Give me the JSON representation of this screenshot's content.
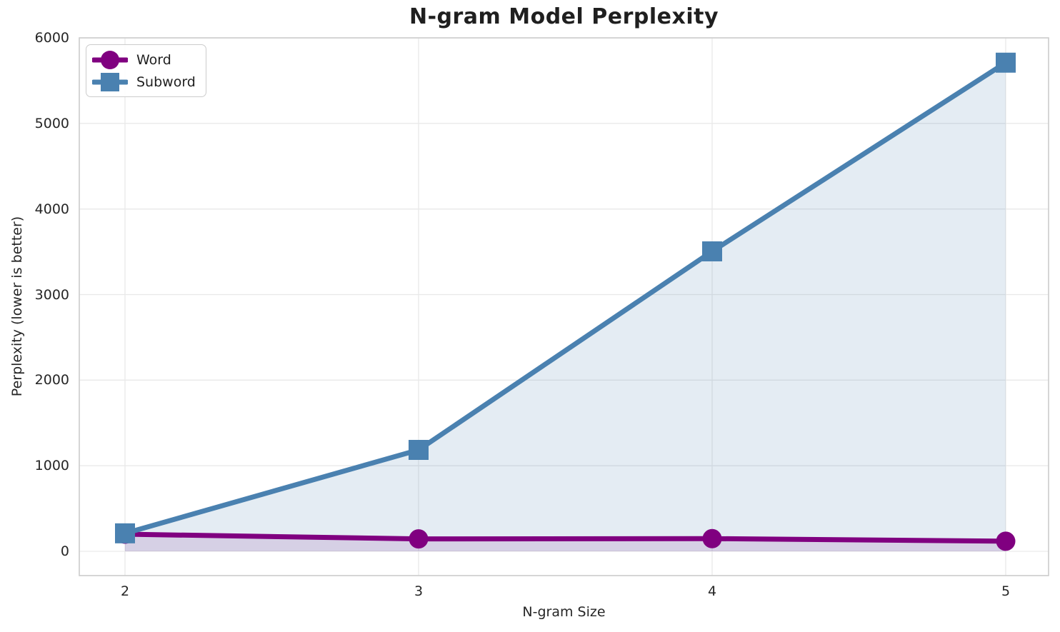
{
  "chart_data": {
    "type": "line",
    "title": "N-gram Model Perplexity",
    "xlabel": "N-gram Size",
    "ylabel": "Perplexity (lower is better)",
    "x": [
      2,
      3,
      4,
      5
    ],
    "xtick_labels": [
      "2",
      "3",
      "4",
      "5"
    ],
    "ytick_labels": [
      "0",
      "1000",
      "2000",
      "3000",
      "4000",
      "5000",
      "6000"
    ],
    "yticks": [
      0,
      1000,
      2000,
      3000,
      4000,
      5000,
      6000
    ],
    "ylim": [
      0,
      6000
    ],
    "grid": true,
    "legend_position": "upper-left",
    "series": [
      {
        "name": "Word",
        "marker": "circle",
        "color": "#800080",
        "fill_opacity": 0.13,
        "values": [
          200,
          145,
          148,
          118
        ]
      },
      {
        "name": "Subword",
        "marker": "square",
        "color": "#4A81B0",
        "fill_opacity": 0.15,
        "values": [
          210,
          1185,
          3505,
          5710
        ]
      }
    ],
    "style_colors": {
      "grid": "#e9e9e9",
      "spine": "#cccccc",
      "text": "#262626",
      "background": "#ffffff"
    }
  }
}
